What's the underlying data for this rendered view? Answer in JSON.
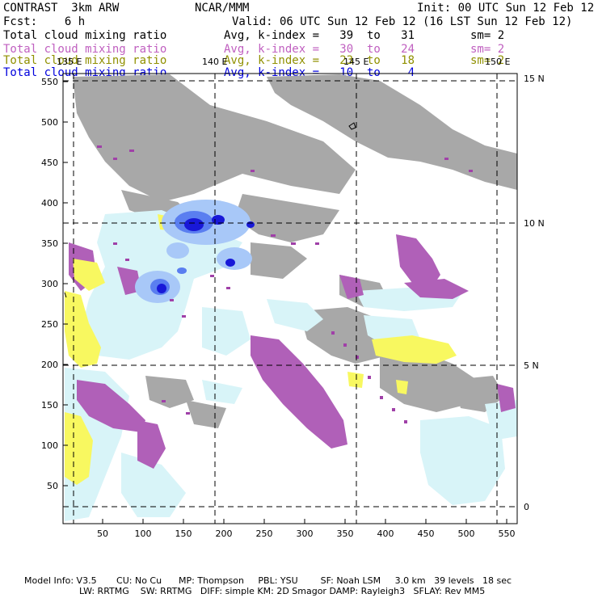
{
  "header": {
    "left1": "CONTRAST  3km ARW",
    "center1": "NCAR/MMM",
    "right1": "Init: 00 UTC Sun 12 Feb 12",
    "left2": "Fcst:    6 h",
    "right2": "Valid: 06 UTC Sun 12 Feb 12 (16 LST Sun 12 Feb 12)"
  },
  "fields": [
    {
      "name": "Total cloud mixing ratio",
      "range": "Avg, k-index =   39  to   31",
      "sm": "sm= 2",
      "color": "#000000"
    },
    {
      "name": "Total cloud mixing ratio",
      "range": "Avg, k-index =   30  to   24",
      "sm": "sm= 2",
      "color": "#c060c0"
    },
    {
      "name": "Total cloud mixing ratio",
      "range": "Avg, k-index =   23  to   18",
      "sm": "sm= 2",
      "color": "#909000"
    },
    {
      "name": "Total cloud mixing ratio",
      "range": "Avg, k-index =   10  to    4",
      "sm": "",
      "color": "#0000dd"
    }
  ],
  "map": {
    "lon_labels": [
      "135 E",
      "140 E",
      "145 E",
      "150 E"
    ],
    "lat_labels": [
      "15 N",
      "10 N",
      "5 N",
      "0"
    ],
    "x_ticks": [
      "50",
      "100",
      "150",
      "200",
      "250",
      "300",
      "350",
      "400",
      "450",
      "500",
      "550"
    ],
    "y_ticks": [
      "550",
      "500",
      "450",
      "400",
      "350",
      "300",
      "250",
      "200",
      "150",
      "100",
      "50"
    ],
    "colors": {
      "grey": "#a8a8a8",
      "purple": "#b060b8",
      "yellow": "#f8f860",
      "cyan": "#d8f4f8",
      "blue_light": "#a8c8f8",
      "blue_dark": "#1818d8"
    }
  },
  "footer": {
    "line1": "Model Info: V3.5       CU: No Cu      MP: Thompson     PBL: YSU        SF: Noah LSM     3.0 km   39 levels   18 sec",
    "line2": "LW: RRTMG    SW: RRTMG   DIFF: simple KM: 2D Smagor DAMP: Rayleigh3   SFLAY: Rev MM5"
  }
}
